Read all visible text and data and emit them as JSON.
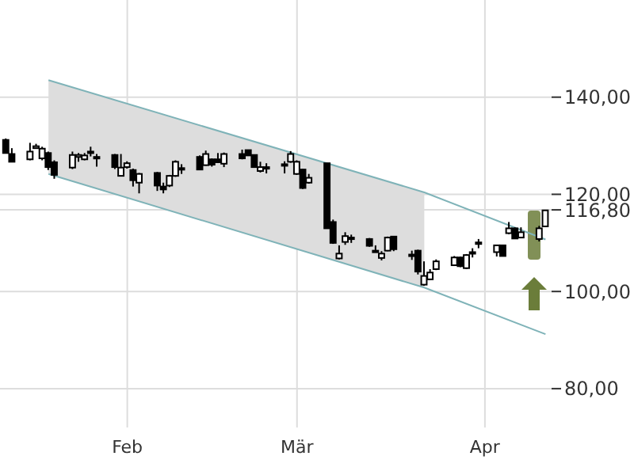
{
  "chart_data": {
    "type": "candlestick",
    "x": [
      "--01-12",
      "--01-13",
      "--01-16",
      "--01-17",
      "--01-18",
      "--01-19",
      "--01-20",
      "--01-23",
      "--01-24",
      "--01-25",
      "--01-26",
      "--01-27",
      "--01-30",
      "--01-31",
      "--02-01",
      "--02-02",
      "--02-03",
      "--02-06",
      "--02-07",
      "--02-08",
      "--02-09",
      "--02-10",
      "--02-13",
      "--02-14",
      "--02-15",
      "--02-16",
      "--02-17",
      "--02-20",
      "--02-21",
      "--02-22",
      "--02-23",
      "--02-24",
      "--02-27",
      "--02-28",
      "--03-01",
      "--03-02",
      "--03-03",
      "--03-06",
      "--03-07",
      "--03-08",
      "--03-09",
      "--03-10",
      "--03-13",
      "--03-14",
      "--03-15",
      "--03-16",
      "--03-17",
      "--03-20",
      "--03-21",
      "--03-22",
      "--03-23",
      "--03-24",
      "--03-27",
      "--03-28",
      "--03-29",
      "--03-30",
      "--03-31",
      "--04-03",
      "--04-04",
      "--04-05",
      "--04-06",
      "--04-07",
      "--04-10",
      "--04-11"
    ],
    "ohlc": [
      [
        131.2,
        131.5,
        128.5,
        128.5
      ],
      [
        128.3,
        129.5,
        126.7,
        126.7
      ],
      [
        127.2,
        130.6,
        127,
        128.8
      ],
      [
        129.5,
        130.4,
        129.4,
        129.9
      ],
      [
        127.4,
        129.8,
        127,
        129.4
      ],
      [
        128.5,
        128.8,
        125,
        125.6
      ],
      [
        126.6,
        127,
        123.2,
        124
      ],
      [
        125.5,
        128.8,
        125.2,
        128.1
      ],
      [
        127.7,
        128.5,
        126.7,
        128.1
      ],
      [
        127.2,
        128.5,
        127,
        128
      ],
      [
        128.5,
        129.8,
        127.8,
        128.8
      ],
      [
        127.6,
        128.3,
        125.7,
        127.7
      ],
      [
        128.1,
        128.3,
        125.2,
        125.6
      ],
      [
        123.8,
        128.3,
        123.8,
        125.5
      ],
      [
        125.6,
        126.8,
        125.3,
        126.4
      ],
      [
        125,
        125.3,
        121.6,
        122.9
      ],
      [
        122.4,
        124.4,
        120.2,
        124.2
      ],
      [
        124.4,
        124.6,
        120.7,
        121.8
      ],
      [
        121.6,
        122.4,
        120.2,
        121
      ],
      [
        121.8,
        124,
        121.5,
        123.8
      ],
      [
        123.8,
        127,
        123.6,
        126.7
      ],
      [
        125.3,
        126.2,
        124.2,
        125.4
      ],
      [
        127.7,
        128,
        125,
        125.1
      ],
      [
        126,
        129,
        125.9,
        128.3
      ],
      [
        127.2,
        127.4,
        125.7,
        126.1
      ],
      [
        127.2,
        128.5,
        126.5,
        126.6
      ],
      [
        126.3,
        128.6,
        125.6,
        128.3
      ],
      [
        128.3,
        129.2,
        127.2,
        127.4
      ],
      [
        129.1,
        129.1,
        128,
        128
      ],
      [
        128.1,
        128.1,
        125.5,
        125.6
      ],
      [
        124.8,
        126.7,
        124.5,
        125.6
      ],
      [
        125.5,
        126.4,
        124.3,
        125.6
      ],
      [
        126.1,
        126.8,
        124.3,
        126.2
      ],
      [
        126.7,
        128.9,
        126.5,
        128.3
      ],
      [
        124.2,
        127,
        124,
        126.7
      ],
      [
        125.1,
        125.2,
        121.1,
        121.3
      ],
      [
        122.4,
        124.2,
        122.2,
        123.4
      ],
      [
        126.4,
        126.4,
        113,
        113
      ],
      [
        114.3,
        114.8,
        109.8,
        110
      ],
      [
        106.8,
        109.5,
        106.6,
        107.8
      ],
      [
        110.2,
        112.2,
        109.6,
        111.4
      ],
      [
        111.1,
        111.7,
        110,
        111
      ],
      [
        110.8,
        111,
        109.2,
        109.4
      ],
      [
        108.4,
        109.5,
        108.1,
        108.3
      ],
      [
        106.9,
        108.3,
        106.4,
        107.8
      ],
      [
        108.4,
        111.3,
        108.3,
        111.1
      ],
      [
        111.3,
        111.3,
        108.3,
        108.7
      ],
      [
        107.5,
        108.4,
        106.5,
        107.6
      ],
      [
        108.4,
        108.6,
        103.5,
        104.1
      ],
      [
        101.4,
        106.2,
        101.2,
        103.2
      ],
      [
        102.5,
        104.6,
        102.4,
        103.9
      ],
      [
        104.6,
        106.6,
        104.4,
        106.2
      ],
      [
        105.4,
        107.3,
        105.3,
        107
      ],
      [
        107,
        107.2,
        105,
        105.2
      ],
      [
        104.8,
        107.7,
        104.6,
        107.5
      ],
      [
        108,
        108.9,
        107,
        108.1
      ],
      [
        110,
        110.8,
        108.9,
        110.1
      ],
      [
        108.1,
        109.6,
        107.2,
        109.5
      ],
      [
        109.5,
        109.6,
        107.2,
        107.3
      ],
      [
        112,
        114.3,
        111.8,
        113
      ],
      [
        113,
        113.2,
        110.8,
        110.9
      ],
      [
        111.1,
        113.2,
        111,
        112.2
      ],
      [
        110.8,
        113.5,
        110.3,
        113
      ],
      [
        113.4,
        116.8,
        113.3,
        116.7
      ]
    ],
    "color": "#000000",
    "series": [
      {
        "type": "line",
        "color": "#7fb3b8",
        "x": [
          "--01-19",
          "--03-22",
          "--04-11"
        ],
        "values": [
          143.5,
          120.4,
          110.7
        ],
        "lower": [
          124.2,
          100.8,
          null
        ],
        "upper": [
          143.5,
          120.4,
          null
        ]
      },
      {
        "type": "line",
        "color": "#7fb3b8",
        "x": [
          "--01-19",
          "--03-22",
          "--04-11"
        ],
        "values": [
          124.2,
          100.8,
          91.2
        ]
      }
    ],
    "xlim": [
      "--01-11",
      "--04-12"
    ],
    "xticks": [
      {
        "value": "--02-01",
        "label": "Feb"
      },
      {
        "value": "--03-01",
        "label": "Mär"
      },
      {
        "value": "--04-01",
        "label": "Apr"
      }
    ],
    "ylim": [
      72,
      160
    ],
    "yticks": [
      {
        "value": 80,
        "label": "80,00"
      },
      {
        "value": 100,
        "label": "100,00"
      },
      {
        "value": 116.8,
        "label": "116,80"
      },
      {
        "value": 120,
        "label": "120,00"
      },
      {
        "value": 140,
        "label": "140,00"
      }
    ],
    "grid": true,
    "marker": "none"
  }
}
